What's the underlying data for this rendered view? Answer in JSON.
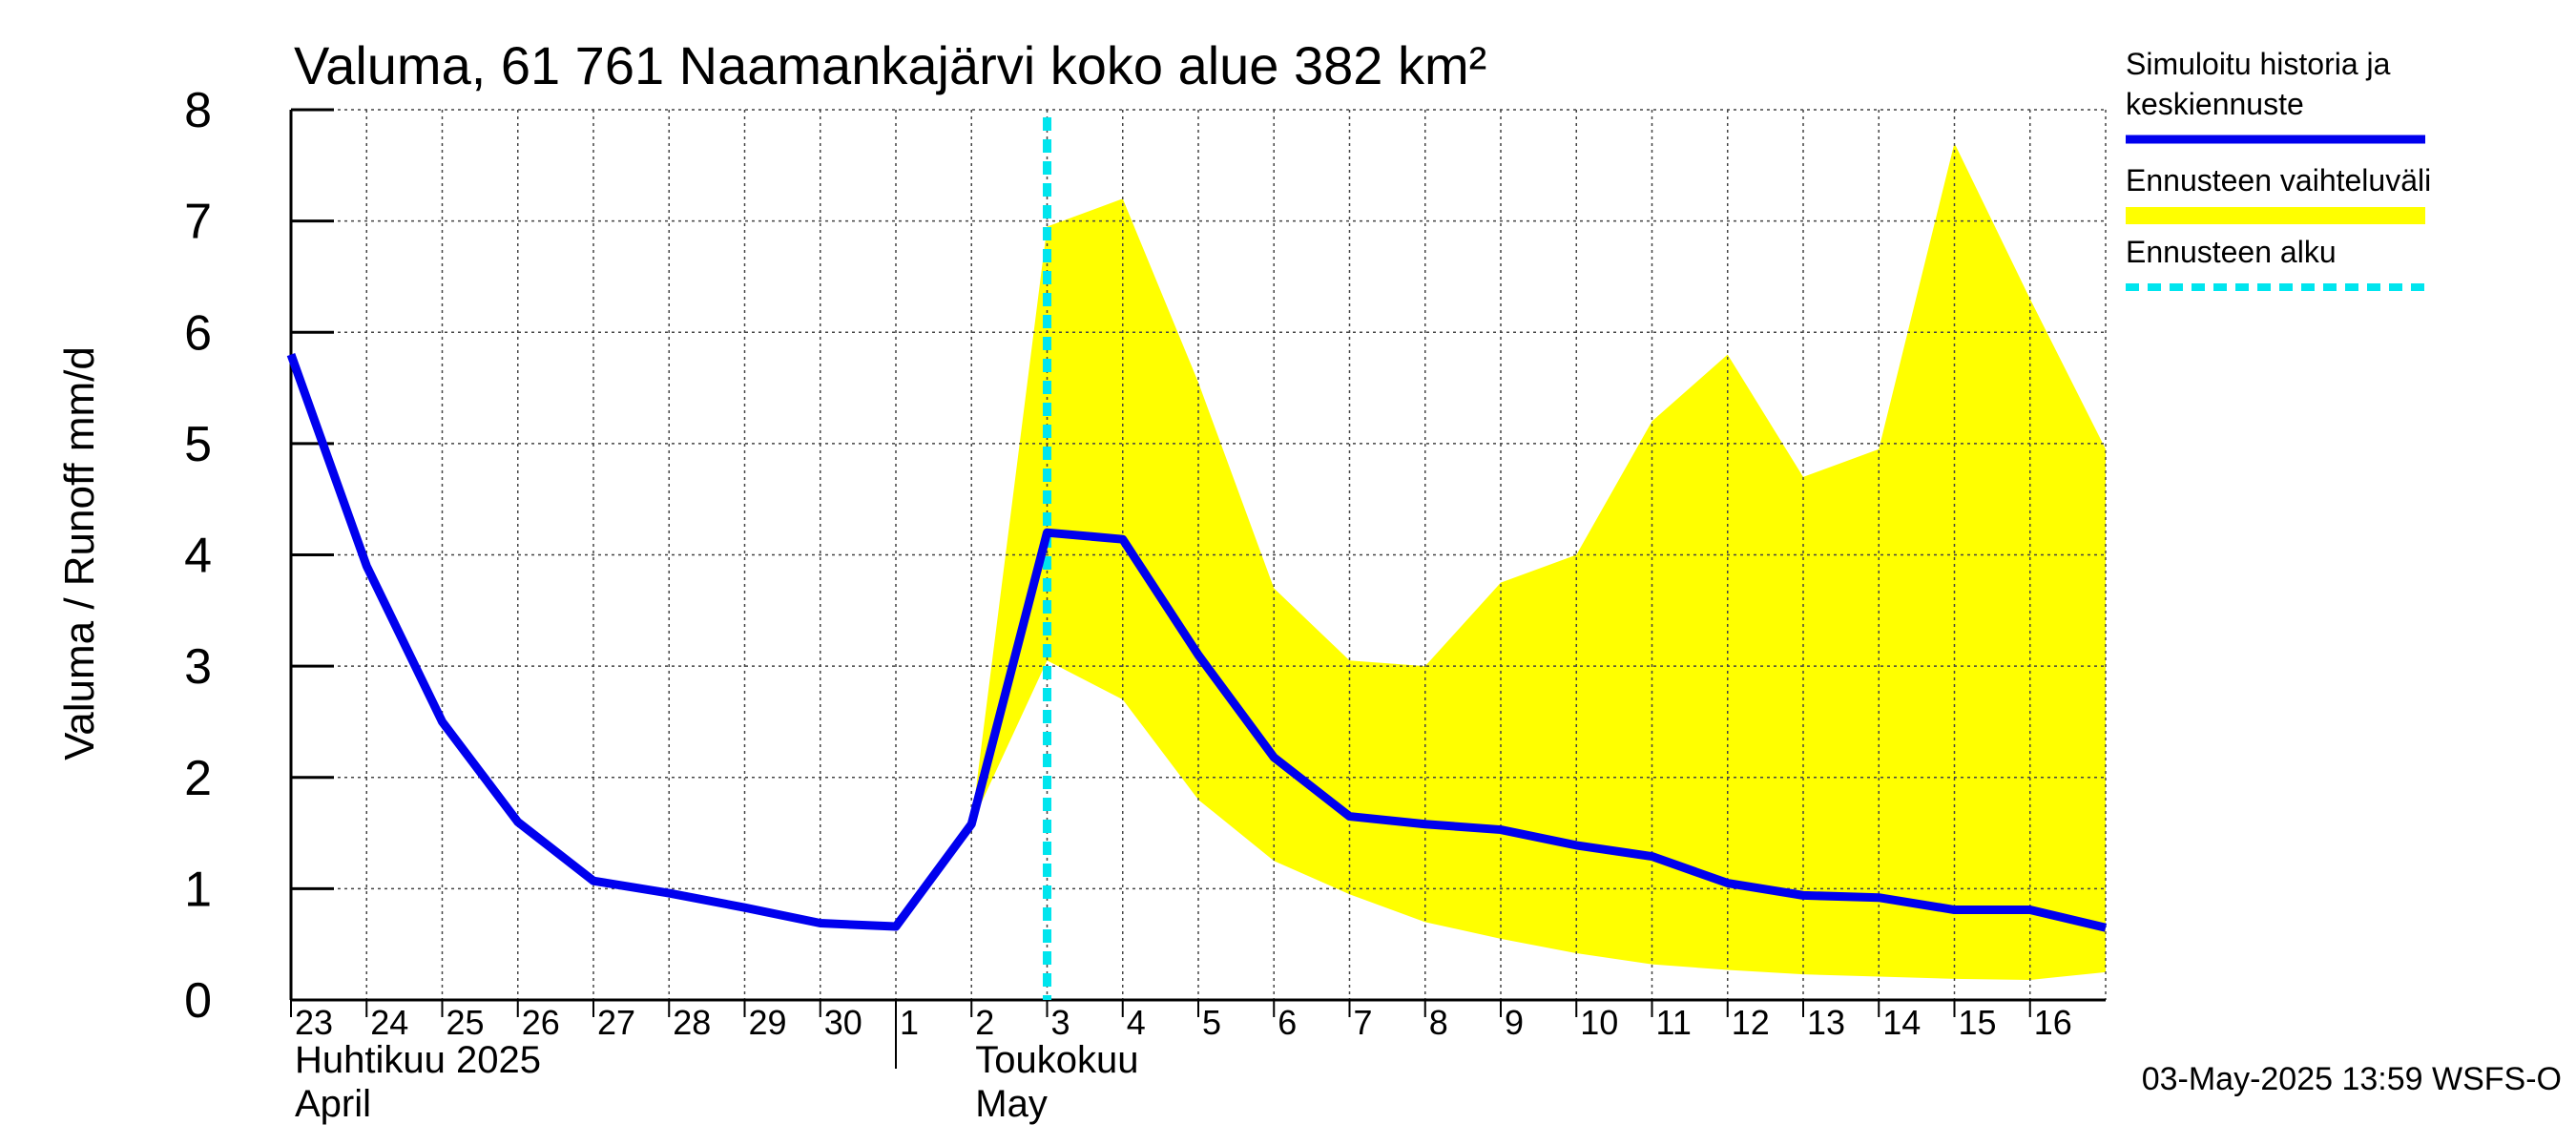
{
  "chart_data": {
    "type": "line",
    "title": "Valuma, 61 761 Naamankajärvi koko alue 382 km²",
    "ylabel": "Valuma / Runoff    mm/d",
    "ylim": [
      0,
      8
    ],
    "yticks": [
      "0",
      "1",
      "2",
      "3",
      "4",
      "5",
      "6",
      "7",
      "8"
    ],
    "x_dates": [
      "2025-04-23",
      "2025-04-24",
      "2025-04-25",
      "2025-04-26",
      "2025-04-27",
      "2025-04-28",
      "2025-04-29",
      "2025-04-30",
      "2025-05-01",
      "2025-05-02",
      "2025-05-03",
      "2025-05-04",
      "2025-05-05",
      "2025-05-06",
      "2025-05-07",
      "2025-05-08",
      "2025-05-09",
      "2025-05-10",
      "2025-05-11",
      "2025-05-12",
      "2025-05-13",
      "2025-05-14",
      "2025-05-15",
      "2025-05-16",
      "2025-05-17"
    ],
    "xtick_labels": [
      "23",
      "24",
      "25",
      "26",
      "27",
      "28",
      "29",
      "30",
      "1",
      "2",
      "3",
      "4",
      "5",
      "6",
      "7",
      "8",
      "9",
      "10",
      "11",
      "12",
      "13",
      "14",
      "15",
      "16"
    ],
    "month_labels": [
      {
        "line1": "Huhtikuu  2025",
        "line2": "April",
        "day": "2025-04-23"
      },
      {
        "line1": "Toukokuu",
        "line2": "May",
        "day": "2025-05-02"
      }
    ],
    "grid": true,
    "legend_position": "right",
    "series": [
      {
        "name": "Simuloitu historia ja keskiennuste",
        "color": "#0000ee",
        "x": [
          "2025-04-23",
          "2025-04-24",
          "2025-04-25",
          "2025-04-26",
          "2025-04-27",
          "2025-04-28",
          "2025-04-29",
          "2025-04-30",
          "2025-05-01",
          "2025-05-02",
          "2025-05-03",
          "2025-05-04",
          "2025-05-05",
          "2025-05-06",
          "2025-05-07",
          "2025-05-08",
          "2025-05-09",
          "2025-05-10",
          "2025-05-11",
          "2025-05-12",
          "2025-05-13",
          "2025-05-14",
          "2025-05-15",
          "2025-05-16",
          "2025-05-17"
        ],
        "values": [
          5.8,
          3.9,
          2.5,
          1.6,
          1.07,
          0.96,
          0.83,
          0.69,
          0.66,
          1.58,
          4.2,
          4.14,
          3.1,
          2.18,
          1.65,
          1.58,
          1.53,
          1.39,
          1.29,
          1.05,
          0.94,
          0.92,
          0.81,
          0.81,
          0.65
        ]
      },
      {
        "name": "Ennusteen vaihteluväli",
        "color": "#ffff00",
        "type": "band",
        "x": [
          "2025-05-02",
          "2025-05-03",
          "2025-05-04",
          "2025-05-05",
          "2025-05-06",
          "2025-05-07",
          "2025-05-08",
          "2025-05-09",
          "2025-05-10",
          "2025-05-11",
          "2025-05-12",
          "2025-05-13",
          "2025-05-14",
          "2025-05-15",
          "2025-05-16",
          "2025-05-17"
        ],
        "lower": [
          1.58,
          3.05,
          2.7,
          1.8,
          1.25,
          0.95,
          0.7,
          0.55,
          0.42,
          0.32,
          0.27,
          0.23,
          0.21,
          0.19,
          0.18,
          0.25
        ],
        "upper": [
          1.58,
          6.95,
          7.2,
          5.55,
          3.7,
          3.05,
          3.0,
          3.75,
          4.0,
          5.2,
          5.8,
          4.7,
          4.95,
          7.7,
          6.3,
          4.95
        ]
      },
      {
        "name": "Ennusteen alku",
        "color": "#00e5ee",
        "type": "vline",
        "x": "2025-05-03"
      }
    ],
    "footer": "03-May-2025 13:59 WSFS-O"
  }
}
